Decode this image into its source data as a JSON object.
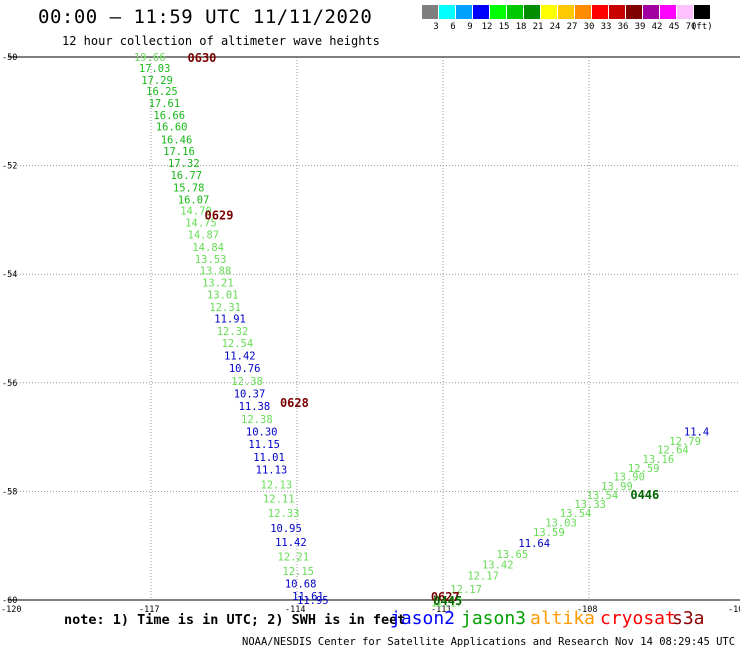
{
  "header": {
    "title": "00:00 – 11:59 UTC 11/11/2020",
    "subtitle": "12 hour collection of altimeter wave heights"
  },
  "color_scale": {
    "bins": [
      {
        "color": "#7f7f7f",
        "label": "3"
      },
      {
        "color": "#00ffff",
        "label": "6"
      },
      {
        "color": "#00a0ff",
        "label": "9"
      },
      {
        "color": "#0000ff",
        "label": "12"
      },
      {
        "color": "#00ff00",
        "label": "15"
      },
      {
        "color": "#00c800",
        "label": "18"
      },
      {
        "color": "#008c00",
        "label": "21"
      },
      {
        "color": "#ffff00",
        "label": "24"
      },
      {
        "color": "#ffc800",
        "label": "27"
      },
      {
        "color": "#ff8c00",
        "label": "30"
      },
      {
        "color": "#ff0000",
        "label": "33"
      },
      {
        "color": "#c80000",
        "label": "36"
      },
      {
        "color": "#800000",
        "label": "39"
      },
      {
        "color": "#a000a0",
        "label": "42"
      },
      {
        "color": "#ff00ff",
        "label": "45"
      },
      {
        "color": "#ffc0ff",
        "label": "70"
      },
      {
        "color": "#000000",
        "label": ""
      }
    ],
    "unit_label": "(ft)"
  },
  "colors": {
    "light_green": "#66dd55",
    "green": "#18b818",
    "blue": "#0000c8",
    "dark_red": "#7a0000",
    "dark_green": "#006400",
    "grid": "#999999"
  },
  "footer": {
    "note": "note: 1) Time is in UTC; 2) SWH is in feet",
    "satellites": [
      {
        "name": "jason2",
        "color": "#0000ff"
      },
      {
        "name": "jason3",
        "color": "#00a000"
      },
      {
        "name": "altika",
        "color": "#ff9900"
      },
      {
        "name": "cryosat",
        "color": "#ff0000"
      },
      {
        "name": "s3a",
        "color": "#8b0000"
      }
    ],
    "credit": "NOAA/NESDIS Center for Satellite Applications and Research   Nov 14 08:29:45 UTC 2020"
  },
  "chart_data": {
    "type": "scatter",
    "title": "12 hour collection of altimeter wave heights",
    "x_axis": {
      "unit": "longitude",
      "range": [
        -120,
        -105
      ],
      "tick_labels": [
        "-120",
        "-117",
        "-114",
        "-111",
        "-108",
        "-10"
      ]
    },
    "y_axis": {
      "unit": "latitude",
      "range": [
        -60,
        -50
      ],
      "tick_labels": [
        "-50",
        "-52",
        "-54",
        "-56",
        "-58",
        "-60"
      ]
    },
    "grid": true,
    "series": [
      {
        "name": "jason3",
        "points": [
          {
            "lon": -117.35,
            "lat": -50.0,
            "value": "19.66",
            "color": "light_green"
          },
          {
            "lon": -117.25,
            "lat": -50.2,
            "value": "17.03",
            "color": "green"
          },
          {
            "lon": -117.2,
            "lat": -50.42,
            "value": "17.29",
            "color": "green"
          },
          {
            "lon": -117.1,
            "lat": -50.63,
            "value": "16.25",
            "color": "green"
          },
          {
            "lon": -117.05,
            "lat": -50.85,
            "value": "17.61",
            "color": "green"
          },
          {
            "lon": -116.95,
            "lat": -51.07,
            "value": "16.66",
            "color": "green"
          },
          {
            "lon": -116.9,
            "lat": -51.28,
            "value": "16.60",
            "color": "green"
          },
          {
            "lon": -116.8,
            "lat": -51.52,
            "value": "16.46",
            "color": "green"
          },
          {
            "lon": -116.75,
            "lat": -51.73,
            "value": "17.16",
            "color": "green"
          },
          {
            "lon": -116.65,
            "lat": -51.95,
            "value": "17.32",
            "color": "green"
          },
          {
            "lon": -116.6,
            "lat": -52.17,
            "value": "16.77",
            "color": "green"
          },
          {
            "lon": -116.55,
            "lat": -52.4,
            "value": "15.78",
            "color": "green"
          },
          {
            "lon": -116.45,
            "lat": -52.62,
            "value": "16.07",
            "color": "green"
          },
          {
            "lon": -116.4,
            "lat": -52.83,
            "value": "14.70",
            "color": "light_green"
          },
          {
            "lon": -116.3,
            "lat": -53.05,
            "value": "14.75",
            "color": "light_green"
          },
          {
            "lon": -116.25,
            "lat": -53.27,
            "value": "14.87",
            "color": "light_green"
          },
          {
            "lon": -116.15,
            "lat": -53.5,
            "value": "14.84",
            "color": "light_green"
          },
          {
            "lon": -116.1,
            "lat": -53.72,
            "value": "13.53",
            "color": "light_green"
          },
          {
            "lon": -116.0,
            "lat": -53.93,
            "value": "13.88",
            "color": "light_green"
          },
          {
            "lon": -115.95,
            "lat": -54.15,
            "value": "13.21",
            "color": "light_green"
          },
          {
            "lon": -115.85,
            "lat": -54.37,
            "value": "13.01",
            "color": "light_green"
          },
          {
            "lon": -115.8,
            "lat": -54.6,
            "value": "12.31",
            "color": "light_green"
          },
          {
            "lon": -115.7,
            "lat": -54.82,
            "value": "11.91",
            "color": "blue"
          },
          {
            "lon": -115.65,
            "lat": -55.05,
            "value": "12.32",
            "color": "light_green"
          },
          {
            "lon": -115.55,
            "lat": -55.27,
            "value": "12.54",
            "color": "light_green"
          },
          {
            "lon": -115.5,
            "lat": -55.5,
            "value": "11.42",
            "color": "blue"
          },
          {
            "lon": -115.4,
            "lat": -55.73,
            "value": "10.76",
            "color": "blue"
          },
          {
            "lon": -115.35,
            "lat": -55.97,
            "value": "12.38",
            "color": "light_green"
          },
          {
            "lon": -115.3,
            "lat": -56.2,
            "value": "10.37",
            "color": "blue"
          },
          {
            "lon": -115.2,
            "lat": -56.43,
            "value": "11.38",
            "color": "blue"
          },
          {
            "lon": -115.15,
            "lat": -56.67,
            "value": "12.38",
            "color": "light_green"
          },
          {
            "lon": -115.05,
            "lat": -56.9,
            "value": "10.30",
            "color": "blue"
          },
          {
            "lon": -115.0,
            "lat": -57.13,
            "value": "11.15",
            "color": "blue"
          },
          {
            "lon": -114.9,
            "lat": -57.37,
            "value": "11.01",
            "color": "blue"
          },
          {
            "lon": -114.85,
            "lat": -57.6,
            "value": "11.13",
            "color": "blue"
          },
          {
            "lon": -114.75,
            "lat": -57.87,
            "value": "12.13",
            "color": "light_green"
          },
          {
            "lon": -114.7,
            "lat": -58.13,
            "value": "12.11",
            "color": "light_green"
          },
          {
            "lon": -114.6,
            "lat": -58.4,
            "value": "12.33",
            "color": "light_green"
          },
          {
            "lon": -114.55,
            "lat": -58.67,
            "value": "10.95",
            "color": "blue"
          },
          {
            "lon": -114.45,
            "lat": -58.93,
            "value": "11.42",
            "color": "blue"
          },
          {
            "lon": -114.4,
            "lat": -59.2,
            "value": "12.21",
            "color": "light_green"
          },
          {
            "lon": -114.3,
            "lat": -59.47,
            "value": "12.15",
            "color": "light_green"
          },
          {
            "lon": -114.25,
            "lat": -59.7,
            "value": "10.68",
            "color": "blue"
          },
          {
            "lon": -114.1,
            "lat": -59.93,
            "value": "11.61",
            "color": "blue"
          },
          {
            "lon": -114.0,
            "lat": -60.0,
            "value": "11.95",
            "color": "blue"
          }
        ],
        "time_labels": [
          {
            "lon": -116.25,
            "lat": -50.0,
            "text": "0630"
          },
          {
            "lon": -115.9,
            "lat": -52.9,
            "text": "0629"
          },
          {
            "lon": -114.35,
            "lat": -56.35,
            "text": "0628"
          },
          {
            "lon": -111.25,
            "lat": -59.93,
            "text": "0627"
          }
        ]
      },
      {
        "name": "jason2",
        "points": [
          {
            "lon": -111.25,
            "lat": -60.05,
            "value": "12.17",
            "color": "light_green"
          },
          {
            "lon": -110.85,
            "lat": -59.8,
            "value": "12.17",
            "color": "light_green"
          },
          {
            "lon": -110.5,
            "lat": -59.55,
            "value": "12.17",
            "color": "light_green"
          },
          {
            "lon": -110.2,
            "lat": -59.35,
            "value": "13.42",
            "color": "light_green"
          },
          {
            "lon": -109.9,
            "lat": -59.15,
            "value": "13.65",
            "color": "light_green"
          },
          {
            "lon": -109.45,
            "lat": -58.95,
            "value": "11.64",
            "color": "blue"
          },
          {
            "lon": -109.15,
            "lat": -58.75,
            "value": "13.59",
            "color": "light_green"
          },
          {
            "lon": -108.9,
            "lat": -58.57,
            "value": "13.03",
            "color": "light_green"
          },
          {
            "lon": -108.6,
            "lat": -58.4,
            "value": "13.54",
            "color": "light_green"
          },
          {
            "lon": -108.3,
            "lat": -58.23,
            "value": "13.33",
            "color": "light_green"
          },
          {
            "lon": -108.05,
            "lat": -58.07,
            "value": "13.54",
            "color": "light_green"
          },
          {
            "lon": -107.75,
            "lat": -57.9,
            "value": "13.99",
            "color": "light_green"
          },
          {
            "lon": -107.5,
            "lat": -57.73,
            "value": "13.90",
            "color": "light_green"
          },
          {
            "lon": -107.2,
            "lat": -57.57,
            "value": "12.59",
            "color": "light_green"
          },
          {
            "lon": -106.9,
            "lat": -57.4,
            "value": "13.16",
            "color": "light_green"
          },
          {
            "lon": -106.6,
            "lat": -57.23,
            "value": "12.64",
            "color": "light_green"
          },
          {
            "lon": -106.35,
            "lat": -57.07,
            "value": "12.79",
            "color": "light_green"
          },
          {
            "lon": -106.05,
            "lat": -56.9,
            "value": "11.4",
            "color": "blue"
          }
        ],
        "time_labels": [
          {
            "lon": -111.2,
            "lat": -60.0,
            "text": "0445"
          },
          {
            "lon": -107.15,
            "lat": -58.05,
            "text": "0446"
          }
        ]
      }
    ]
  }
}
